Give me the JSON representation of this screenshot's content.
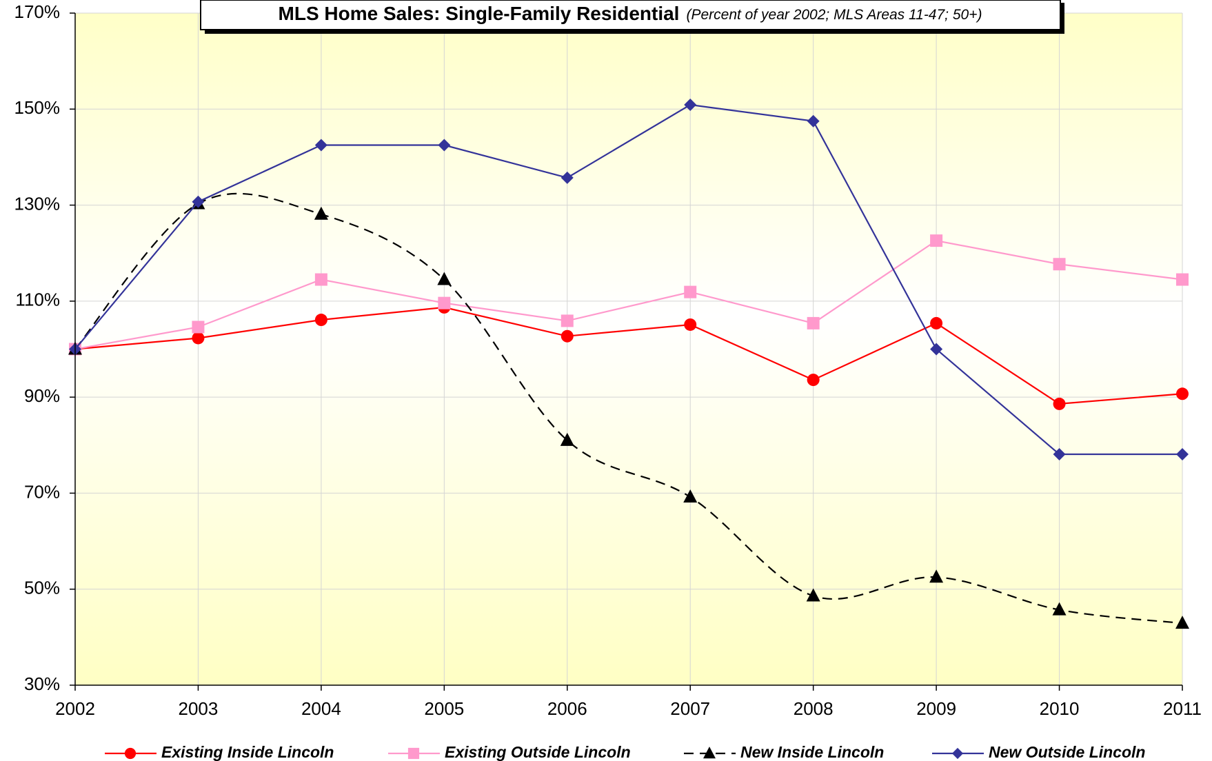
{
  "chart_data": {
    "type": "line",
    "title": "MLS Home Sales: Single-Family Residential",
    "subtitle": "(Percent of year 2002; MLS Areas 11-47; 50+)",
    "categories": [
      "2002",
      "2003",
      "2004",
      "2005",
      "2006",
      "2007",
      "2008",
      "2009",
      "2010",
      "2011"
    ],
    "ylim": [
      30,
      170
    ],
    "yticks": [
      {
        "value": 30,
        "label": "30%"
      },
      {
        "value": 50,
        "label": "50%"
      },
      {
        "value": 70,
        "label": "70%"
      },
      {
        "value": 90,
        "label": "90%"
      },
      {
        "value": 110,
        "label": "110%"
      },
      {
        "value": 130,
        "label": "130%"
      },
      {
        "value": 150,
        "label": "150%"
      },
      {
        "value": 170,
        "label": "170%"
      }
    ],
    "grid": true,
    "legend": "bottom",
    "series": [
      {
        "name": "Existing Inside Lincoln",
        "color": "#ff0000",
        "marker": "circle",
        "line_style": "solid",
        "smooth": false,
        "values": [
          100,
          102.3,
          106.1,
          108.7,
          102.7,
          105.1,
          93.6,
          105.4,
          88.6,
          90.7
        ]
      },
      {
        "name": "Existing Outside Lincoln",
        "color": "#ff99cc",
        "marker": "square",
        "line_style": "solid",
        "smooth": false,
        "values": [
          100,
          104.6,
          114.5,
          109.6,
          105.9,
          111.9,
          105.4,
          122.6,
          117.7,
          114.5
        ]
      },
      {
        "name": "New Inside Lincoln",
        "color": "#000000",
        "marker": "triangle",
        "line_style": "dashed",
        "smooth": true,
        "values": [
          100,
          130.3,
          128.1,
          114.5,
          81,
          69.2,
          48.6,
          52.5,
          45.7,
          42.9
        ]
      },
      {
        "name": "New Outside Lincoln",
        "color": "#333399",
        "marker": "diamond",
        "line_style": "solid",
        "smooth": false,
        "values": [
          100,
          130.7,
          142.5,
          142.5,
          135.7,
          150.9,
          147.5,
          100,
          78.1,
          78.1
        ]
      }
    ]
  }
}
